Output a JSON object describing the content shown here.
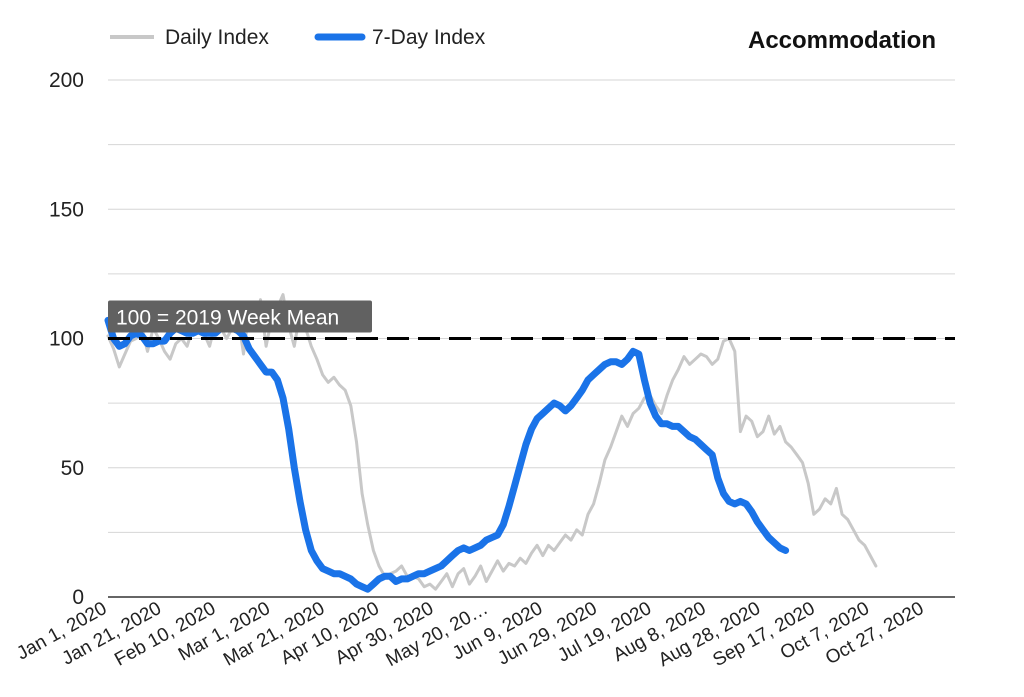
{
  "chart_data": {
    "type": "line",
    "title": "Accommodation",
    "xlabel": "",
    "ylabel": "",
    "ylim": [
      0,
      200
    ],
    "yticks": [
      0,
      50,
      100,
      150,
      200
    ],
    "x_tick_labels": [
      "Jan 1, 2020",
      "Jan 21, 2020",
      "Feb 10, 2020",
      "Mar 1, 2020",
      "Mar 21, 2020",
      "Apr 10, 2020",
      "Apr 30, 2020",
      "May 20, 20…",
      "Jun 9, 2020",
      "Jun 29, 2020",
      "Jul 19, 2020",
      "Aug 8, 2020",
      "Aug 28, 2020",
      "Sep 17, 2020",
      "Oct 7, 2020",
      "Oct 27, 2020"
    ],
    "grid": true,
    "legend_position": "top-left",
    "reference_line": {
      "value": 100,
      "label": "100 = 2019 Week Mean",
      "color": "#000000"
    },
    "x_unit": "day of 2020 (0 = Jan 1, 2020)",
    "series": [
      {
        "name": "Daily Index",
        "color": "#c8c8c8",
        "points": [
          [
            0,
            101
          ],
          [
            2,
            96
          ],
          [
            4,
            89
          ],
          [
            6,
            94
          ],
          [
            8,
            99
          ],
          [
            10,
            100
          ],
          [
            12,
            104
          ],
          [
            14,
            95
          ],
          [
            16,
            104
          ],
          [
            18,
            100
          ],
          [
            20,
            95
          ],
          [
            22,
            92
          ],
          [
            24,
            98
          ],
          [
            26,
            100
          ],
          [
            28,
            97
          ],
          [
            30,
            104
          ],
          [
            32,
            108
          ],
          [
            34,
            102
          ],
          [
            36,
            97
          ],
          [
            38,
            106
          ],
          [
            40,
            104
          ],
          [
            42,
            100
          ],
          [
            44,
            104
          ],
          [
            46,
            109
          ],
          [
            48,
            94
          ],
          [
            50,
            111
          ],
          [
            52,
            104
          ],
          [
            54,
            115
          ],
          [
            56,
            97
          ],
          [
            58,
            108
          ],
          [
            60,
            112
          ],
          [
            62,
            117
          ],
          [
            64,
            105
          ],
          [
            66,
            97
          ],
          [
            68,
            110
          ],
          [
            70,
            104
          ],
          [
            72,
            97
          ],
          [
            74,
            92
          ],
          [
            76,
            86
          ],
          [
            78,
            83
          ],
          [
            80,
            85
          ],
          [
            82,
            82
          ],
          [
            84,
            80
          ],
          [
            86,
            74
          ],
          [
            88,
            60
          ],
          [
            90,
            40
          ],
          [
            92,
            28
          ],
          [
            94,
            18
          ],
          [
            96,
            12
          ],
          [
            98,
            8
          ],
          [
            100,
            9
          ],
          [
            102,
            10
          ],
          [
            104,
            12
          ],
          [
            106,
            8
          ],
          [
            108,
            8
          ],
          [
            110,
            7
          ],
          [
            112,
            4
          ],
          [
            114,
            5
          ],
          [
            116,
            3
          ],
          [
            118,
            6
          ],
          [
            120,
            9
          ],
          [
            122,
            4
          ],
          [
            124,
            9
          ],
          [
            126,
            11
          ],
          [
            128,
            5
          ],
          [
            130,
            8
          ],
          [
            132,
            12
          ],
          [
            134,
            6
          ],
          [
            136,
            10
          ],
          [
            138,
            14
          ],
          [
            140,
            10
          ],
          [
            142,
            13
          ],
          [
            144,
            12
          ],
          [
            146,
            15
          ],
          [
            148,
            13
          ],
          [
            150,
            17
          ],
          [
            152,
            20
          ],
          [
            154,
            16
          ],
          [
            156,
            20
          ],
          [
            158,
            18
          ],
          [
            160,
            21
          ],
          [
            162,
            24
          ],
          [
            164,
            22
          ],
          [
            166,
            26
          ],
          [
            168,
            24
          ],
          [
            170,
            32
          ],
          [
            172,
            36
          ],
          [
            174,
            44
          ],
          [
            176,
            53
          ],
          [
            178,
            58
          ],
          [
            180,
            64
          ],
          [
            182,
            70
          ],
          [
            184,
            66
          ],
          [
            186,
            71
          ],
          [
            188,
            73
          ],
          [
            190,
            77
          ],
          [
            192,
            78
          ],
          [
            194,
            74
          ],
          [
            196,
            71
          ],
          [
            198,
            78
          ],
          [
            200,
            84
          ],
          [
            202,
            88
          ],
          [
            204,
            93
          ],
          [
            206,
            90
          ],
          [
            208,
            92
          ],
          [
            210,
            94
          ],
          [
            212,
            93
          ],
          [
            214,
            90
          ],
          [
            216,
            92
          ],
          [
            218,
            99
          ],
          [
            220,
            100
          ],
          [
            222,
            95
          ],
          [
            224,
            64
          ],
          [
            226,
            70
          ],
          [
            228,
            68
          ],
          [
            230,
            62
          ],
          [
            232,
            64
          ],
          [
            234,
            70
          ],
          [
            236,
            63
          ],
          [
            238,
            66
          ],
          [
            240,
            60
          ],
          [
            242,
            58
          ],
          [
            244,
            55
          ],
          [
            246,
            52
          ],
          [
            248,
            44
          ],
          [
            250,
            32
          ],
          [
            252,
            34
          ],
          [
            254,
            38
          ],
          [
            256,
            36
          ],
          [
            258,
            42
          ],
          [
            260,
            32
          ],
          [
            262,
            30
          ],
          [
            264,
            26
          ],
          [
            266,
            22
          ],
          [
            268,
            20
          ],
          [
            270,
            16
          ],
          [
            272,
            12
          ]
        ]
      },
      {
        "name": "7-Day Index",
        "color": "#1a73e8",
        "points": [
          [
            0,
            107
          ],
          [
            2,
            100
          ],
          [
            4,
            97
          ],
          [
            6,
            98
          ],
          [
            8,
            101
          ],
          [
            10,
            102
          ],
          [
            12,
            101
          ],
          [
            14,
            98
          ],
          [
            16,
            98
          ],
          [
            18,
            99
          ],
          [
            20,
            99
          ],
          [
            22,
            102
          ],
          [
            24,
            104
          ],
          [
            26,
            103
          ],
          [
            28,
            102
          ],
          [
            30,
            102
          ],
          [
            32,
            103
          ],
          [
            34,
            102
          ],
          [
            36,
            102
          ],
          [
            38,
            102
          ],
          [
            40,
            104
          ],
          [
            42,
            104
          ],
          [
            44,
            104
          ],
          [
            46,
            103
          ],
          [
            48,
            101
          ],
          [
            50,
            96
          ],
          [
            52,
            93
          ],
          [
            54,
            90
          ],
          [
            56,
            87
          ],
          [
            58,
            87
          ],
          [
            60,
            84
          ],
          [
            62,
            77
          ],
          [
            64,
            65
          ],
          [
            66,
            50
          ],
          [
            68,
            37
          ],
          [
            70,
            26
          ],
          [
            72,
            18
          ],
          [
            74,
            14
          ],
          [
            76,
            11
          ],
          [
            78,
            10
          ],
          [
            80,
            9
          ],
          [
            82,
            9
          ],
          [
            84,
            8
          ],
          [
            86,
            7
          ],
          [
            88,
            5
          ],
          [
            90,
            4
          ],
          [
            92,
            3
          ],
          [
            94,
            5
          ],
          [
            96,
            7
          ],
          [
            98,
            8
          ],
          [
            100,
            8
          ],
          [
            102,
            6
          ],
          [
            104,
            7
          ],
          [
            106,
            7
          ],
          [
            108,
            8
          ],
          [
            110,
            9
          ],
          [
            112,
            9
          ],
          [
            114,
            10
          ],
          [
            116,
            11
          ],
          [
            118,
            12
          ],
          [
            120,
            14
          ],
          [
            122,
            16
          ],
          [
            124,
            18
          ],
          [
            126,
            19
          ],
          [
            128,
            18
          ],
          [
            130,
            19
          ],
          [
            132,
            20
          ],
          [
            134,
            22
          ],
          [
            136,
            23
          ],
          [
            138,
            24
          ],
          [
            140,
            28
          ],
          [
            142,
            35
          ],
          [
            144,
            43
          ],
          [
            146,
            51
          ],
          [
            148,
            59
          ],
          [
            150,
            65
          ],
          [
            152,
            69
          ],
          [
            154,
            71
          ],
          [
            156,
            73
          ],
          [
            158,
            75
          ],
          [
            160,
            74
          ],
          [
            162,
            72
          ],
          [
            164,
            74
          ],
          [
            166,
            77
          ],
          [
            168,
            80
          ],
          [
            170,
            84
          ],
          [
            172,
            86
          ],
          [
            174,
            88
          ],
          [
            176,
            90
          ],
          [
            178,
            91
          ],
          [
            180,
            91
          ],
          [
            182,
            90
          ],
          [
            184,
            92
          ],
          [
            186,
            95
          ],
          [
            188,
            94
          ],
          [
            190,
            84
          ],
          [
            192,
            75
          ],
          [
            194,
            70
          ],
          [
            196,
            67
          ],
          [
            198,
            67
          ],
          [
            200,
            66
          ],
          [
            202,
            66
          ],
          [
            204,
            64
          ],
          [
            206,
            62
          ],
          [
            208,
            61
          ],
          [
            210,
            59
          ],
          [
            212,
            57
          ],
          [
            214,
            55
          ],
          [
            216,
            46
          ],
          [
            218,
            40
          ],
          [
            220,
            37
          ],
          [
            222,
            36
          ],
          [
            224,
            37
          ],
          [
            226,
            36
          ],
          [
            228,
            33
          ],
          [
            230,
            29
          ],
          [
            232,
            26
          ],
          [
            234,
            23
          ],
          [
            236,
            21
          ],
          [
            238,
            19
          ],
          [
            240,
            18
          ]
        ]
      }
    ]
  }
}
